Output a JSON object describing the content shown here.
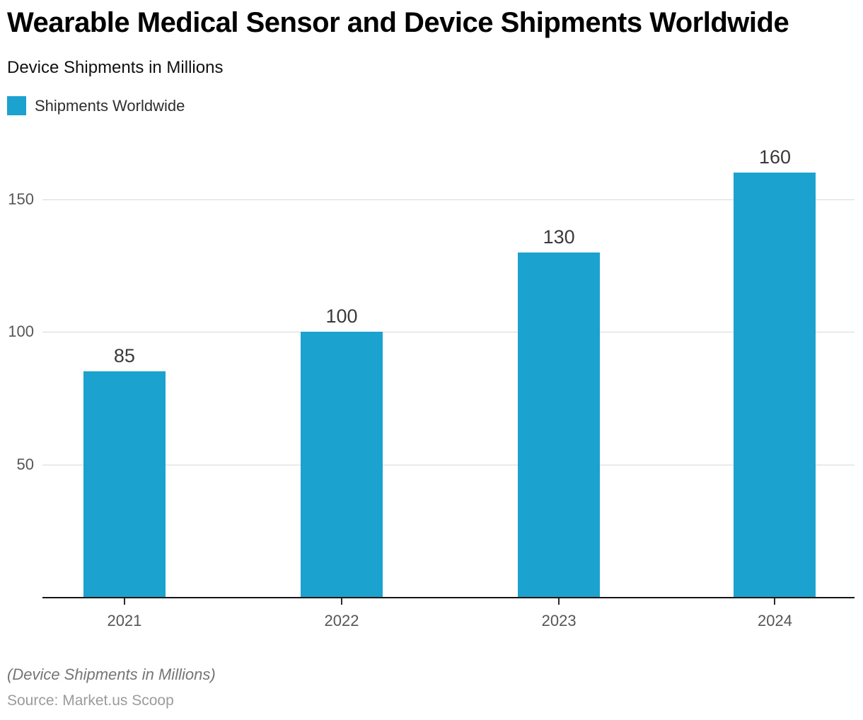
{
  "header": {
    "title": "Wearable Medical Sensor and Device Shipments Worldwide",
    "subtitle": "Device Shipments in Millions"
  },
  "legend": {
    "label": "Shipments Worldwide",
    "color": "#1BA2CE"
  },
  "chart_data": {
    "type": "bar",
    "title": "Wearable Medical Sensor and Device Shipments Worldwide",
    "subtitle": "Device Shipments in Millions",
    "categories": [
      "2021",
      "2022",
      "2023",
      "2024"
    ],
    "series": [
      {
        "name": "Shipments Worldwide",
        "values": [
          85,
          100,
          130,
          160
        ]
      }
    ],
    "values": [
      85,
      100,
      130,
      160
    ],
    "value_labels_shown": true,
    "xlabel": "",
    "ylabel": "Device Shipments in Millions",
    "yticks": [
      50,
      100,
      150
    ],
    "ylim": [
      0,
      175
    ],
    "grid": "horizontal",
    "legend_position": "top-left",
    "bar_color": "#1BA2CE",
    "axis_color": "#161616",
    "gridline_color": "#d8d8d8"
  },
  "footer": {
    "note": "(Device Shipments in Millions)",
    "source": "Source: Market.us Scoop"
  }
}
